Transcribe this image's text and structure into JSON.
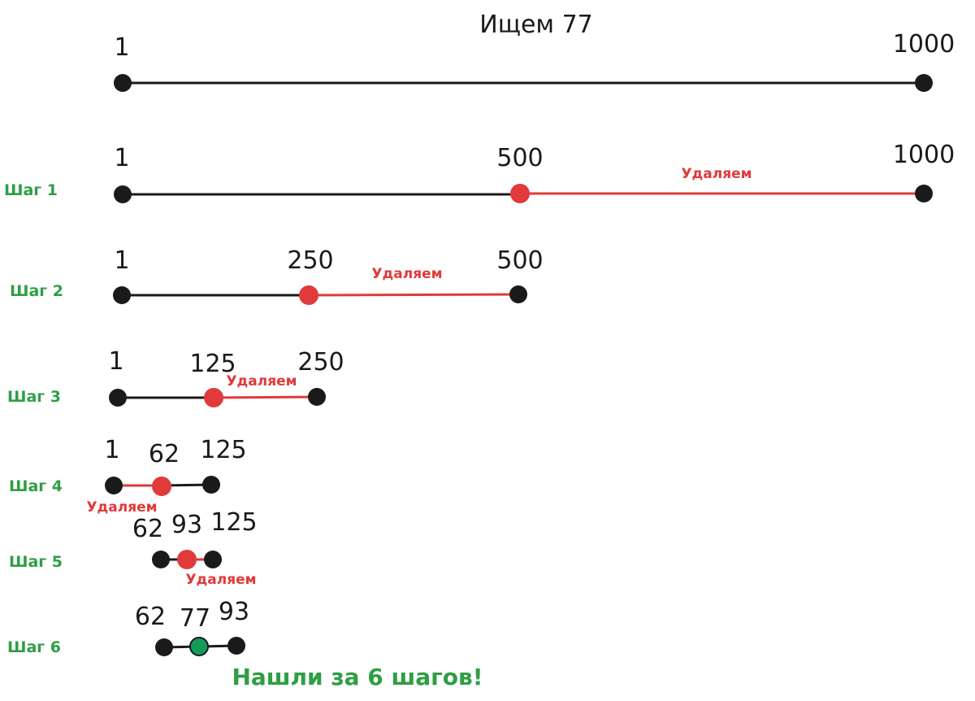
{
  "title": "Ищем 77",
  "colors": {
    "black": "#1a1a1a",
    "red": "#e03a3a",
    "green": "#2f9e44",
    "green_dot": "#149a5a"
  },
  "rows": [
    {
      "step": "",
      "numbers": [
        "1",
        "1000"
      ],
      "remove": ""
    },
    {
      "step": "Шаг 1",
      "numbers": [
        "1",
        "500",
        "1000"
      ],
      "remove": "Удаляем"
    },
    {
      "step": "Шаг 2",
      "numbers": [
        "1",
        "250",
        "500"
      ],
      "remove": "Удаляем"
    },
    {
      "step": "Шаг 3",
      "numbers": [
        "1",
        "125",
        "250"
      ],
      "remove": "Удаляем"
    },
    {
      "step": "Шаг 4",
      "numbers": [
        "1",
        "62",
        "125"
      ],
      "remove": "Удаляем"
    },
    {
      "step": "Шаг 5",
      "numbers": [
        "62",
        "93",
        "125"
      ],
      "remove": "Удаляем"
    },
    {
      "step": "Шаг 6",
      "numbers": [
        "62",
        "77",
        "93"
      ],
      "remove": ""
    }
  ],
  "result": "Нашли за 6 шагов!"
}
